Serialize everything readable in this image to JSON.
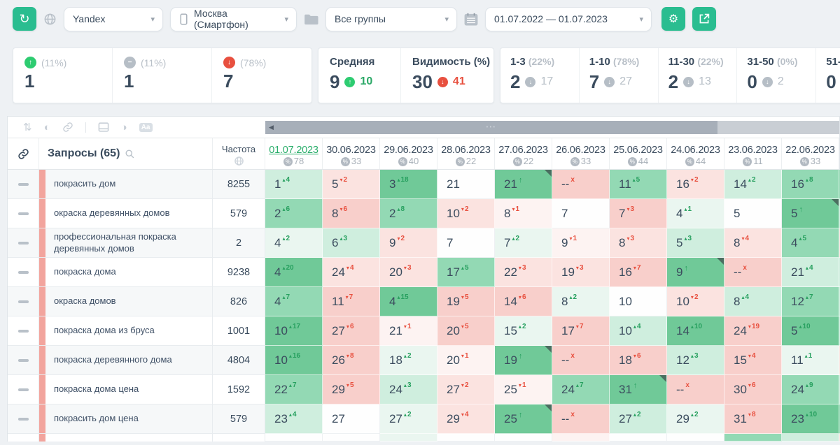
{
  "topbar": {
    "search_engine": "Yandex",
    "region": "Москва (Смартфон)",
    "group": "Все группы",
    "date_range": "01.07.2022 — 01.07.2023"
  },
  "summary": {
    "movement": [
      {
        "direction": "up",
        "pct": "(11%)",
        "value": "1"
      },
      {
        "direction": "same",
        "pct": "(11%)",
        "value": "1"
      },
      {
        "direction": "down",
        "pct": "(78%)",
        "value": "7"
      }
    ],
    "metrics": [
      {
        "label": "Средняя",
        "value": "9",
        "delta": "10",
        "trend": "up"
      },
      {
        "label": "Видимость (%)",
        "value": "30",
        "delta": "41",
        "trend": "down"
      }
    ],
    "ranges": [
      {
        "label": "1-3",
        "pct": "(22%)",
        "value": "2",
        "delta": "17"
      },
      {
        "label": "1-10",
        "pct": "(78%)",
        "value": "7",
        "delta": "27"
      },
      {
        "label": "11-30",
        "pct": "(22%)",
        "value": "2",
        "delta": "13"
      },
      {
        "label": "31-50",
        "pct": "(0%)",
        "value": "0",
        "delta": "2"
      },
      {
        "label": "51-",
        "pct": "",
        "value": "0",
        "delta": ""
      }
    ]
  },
  "table": {
    "queries_label": "Запросы",
    "queries_count": "(65)",
    "frequency_label": "Частота",
    "dates": [
      {
        "date": "01.07.2023",
        "visibility": "78",
        "current": true
      },
      {
        "date": "30.06.2023",
        "visibility": "33",
        "current": false
      },
      {
        "date": "29.06.2023",
        "visibility": "40",
        "current": false
      },
      {
        "date": "28.06.2023",
        "visibility": "22",
        "current": false
      },
      {
        "date": "27.06.2023",
        "visibility": "22",
        "current": false
      },
      {
        "date": "26.06.2023",
        "visibility": "33",
        "current": false
      },
      {
        "date": "25.06.2023",
        "visibility": "44",
        "current": false
      },
      {
        "date": "24.06.2023",
        "visibility": "44",
        "current": false
      },
      {
        "date": "23.06.2023",
        "visibility": "11",
        "current": false
      },
      {
        "date": "22.06.2023",
        "visibility": "33",
        "current": false
      }
    ],
    "rows": [
      {
        "keyword": "покрасить дом",
        "frequency": "8255",
        "edge": "g3",
        "cells": [
          {
            "v": "1",
            "d": "4",
            "t": "up",
            "s": "g2"
          },
          {
            "v": "5",
            "d": "2",
            "t": "down",
            "s": "p2"
          },
          {
            "v": "3",
            "d": "18",
            "t": "up",
            "s": "g4"
          },
          {
            "v": "21",
            "t": "none",
            "s": "w"
          },
          {
            "v": "21",
            "t": "flag",
            "s": "g4"
          },
          {
            "v": "--",
            "t": "lost",
            "s": "p3"
          },
          {
            "v": "11",
            "d": "5",
            "t": "up",
            "s": "g3"
          },
          {
            "v": "16",
            "d": "2",
            "t": "down",
            "s": "p2"
          },
          {
            "v": "14",
            "d": "2",
            "t": "up",
            "s": "g2"
          },
          {
            "v": "16",
            "d": "8",
            "t": "up",
            "s": "g3"
          }
        ]
      },
      {
        "keyword": "окраска деревянных домов",
        "frequency": "579",
        "edge": "g2",
        "cells": [
          {
            "v": "2",
            "d": "6",
            "t": "up",
            "s": "g3"
          },
          {
            "v": "8",
            "d": "6",
            "t": "down",
            "s": "p3"
          },
          {
            "v": "2",
            "d": "8",
            "t": "up",
            "s": "g3"
          },
          {
            "v": "10",
            "d": "2",
            "t": "down",
            "s": "p2"
          },
          {
            "v": "8",
            "d": "1",
            "t": "down",
            "s": "p1"
          },
          {
            "v": "7",
            "t": "none",
            "s": "w"
          },
          {
            "v": "7",
            "d": "3",
            "t": "down",
            "s": "p3"
          },
          {
            "v": "4",
            "d": "1",
            "t": "up",
            "s": "g1"
          },
          {
            "v": "5",
            "t": "none",
            "s": "w"
          },
          {
            "v": "5",
            "t": "flag",
            "s": "g4"
          }
        ]
      },
      {
        "keyword": "профессиональная покраска деревянных домов",
        "frequency": "2",
        "edge": "p2",
        "cells": [
          {
            "v": "4",
            "d": "2",
            "t": "up",
            "s": "g1"
          },
          {
            "v": "6",
            "d": "3",
            "t": "up",
            "s": "g2"
          },
          {
            "v": "9",
            "d": "2",
            "t": "down",
            "s": "p2"
          },
          {
            "v": "7",
            "t": "none",
            "s": "w"
          },
          {
            "v": "7",
            "d": "2",
            "t": "up",
            "s": "g1"
          },
          {
            "v": "9",
            "d": "1",
            "t": "down",
            "s": "p1"
          },
          {
            "v": "8",
            "d": "3",
            "t": "down",
            "s": "p2"
          },
          {
            "v": "5",
            "d": "3",
            "t": "up",
            "s": "g2"
          },
          {
            "v": "8",
            "d": "4",
            "t": "down",
            "s": "p2"
          },
          {
            "v": "4",
            "d": "5",
            "t": "up",
            "s": "g3"
          }
        ]
      },
      {
        "keyword": "покраска дома",
        "frequency": "9238",
        "edge": "g2",
        "cells": [
          {
            "v": "4",
            "d": "20",
            "t": "up",
            "s": "g4"
          },
          {
            "v": "24",
            "d": "4",
            "t": "down",
            "s": "p2"
          },
          {
            "v": "20",
            "d": "3",
            "t": "down",
            "s": "p2"
          },
          {
            "v": "17",
            "d": "5",
            "t": "up",
            "s": "g3"
          },
          {
            "v": "22",
            "d": "3",
            "t": "down",
            "s": "p2"
          },
          {
            "v": "19",
            "d": "3",
            "t": "down",
            "s": "p2"
          },
          {
            "v": "16",
            "d": "7",
            "t": "down",
            "s": "p3"
          },
          {
            "v": "9",
            "t": "flag",
            "s": "g4"
          },
          {
            "v": "--",
            "t": "lost",
            "s": "p3"
          },
          {
            "v": "21",
            "d": "4",
            "t": "up",
            "s": "g2"
          }
        ]
      },
      {
        "keyword": "окраска домов",
        "frequency": "826",
        "edge": "g2",
        "cells": [
          {
            "v": "4",
            "d": "7",
            "t": "up",
            "s": "g3"
          },
          {
            "v": "11",
            "d": "7",
            "t": "down",
            "s": "p3"
          },
          {
            "v": "4",
            "d": "15",
            "t": "up",
            "s": "g4"
          },
          {
            "v": "19",
            "d": "5",
            "t": "down",
            "s": "p3"
          },
          {
            "v": "14",
            "d": "6",
            "t": "down",
            "s": "p3"
          },
          {
            "v": "8",
            "d": "2",
            "t": "up",
            "s": "g1"
          },
          {
            "v": "10",
            "t": "none",
            "s": "w"
          },
          {
            "v": "10",
            "d": "2",
            "t": "down",
            "s": "p2"
          },
          {
            "v": "8",
            "d": "4",
            "t": "up",
            "s": "g2"
          },
          {
            "v": "12",
            "d": "7",
            "t": "up",
            "s": "g3"
          }
        ]
      },
      {
        "keyword": "покраска дома из бруса",
        "frequency": "1001",
        "edge": "g2",
        "cells": [
          {
            "v": "10",
            "d": "17",
            "t": "up",
            "s": "g4"
          },
          {
            "v": "27",
            "d": "6",
            "t": "down",
            "s": "p3"
          },
          {
            "v": "21",
            "d": "1",
            "t": "down",
            "s": "p1"
          },
          {
            "v": "20",
            "d": "5",
            "t": "down",
            "s": "p3"
          },
          {
            "v": "15",
            "d": "2",
            "t": "up",
            "s": "g1"
          },
          {
            "v": "17",
            "d": "7",
            "t": "down",
            "s": "p3"
          },
          {
            "v": "10",
            "d": "4",
            "t": "up",
            "s": "g2"
          },
          {
            "v": "14",
            "d": "10",
            "t": "up",
            "s": "g4"
          },
          {
            "v": "24",
            "d": "19",
            "t": "down",
            "s": "p3"
          },
          {
            "v": "5",
            "d": "10",
            "t": "up",
            "s": "g4"
          }
        ]
      },
      {
        "keyword": "покраска деревянного дома",
        "frequency": "4804",
        "edge": "p2",
        "cells": [
          {
            "v": "10",
            "d": "16",
            "t": "up",
            "s": "g4"
          },
          {
            "v": "26",
            "d": "8",
            "t": "down",
            "s": "p3"
          },
          {
            "v": "18",
            "d": "2",
            "t": "up",
            "s": "g1"
          },
          {
            "v": "20",
            "d": "1",
            "t": "down",
            "s": "p1"
          },
          {
            "v": "19",
            "t": "flag",
            "s": "g4"
          },
          {
            "v": "--",
            "t": "lost",
            "s": "p3"
          },
          {
            "v": "18",
            "d": "6",
            "t": "down",
            "s": "p3"
          },
          {
            "v": "12",
            "d": "3",
            "t": "up",
            "s": "g2"
          },
          {
            "v": "15",
            "d": "4",
            "t": "down",
            "s": "p3"
          },
          {
            "v": "11",
            "d": "1",
            "t": "up",
            "s": "g1"
          }
        ]
      },
      {
        "keyword": "покраска дома цена",
        "frequency": "1592",
        "edge": "g2",
        "cells": [
          {
            "v": "22",
            "d": "7",
            "t": "up",
            "s": "g3"
          },
          {
            "v": "29",
            "d": "5",
            "t": "down",
            "s": "p3"
          },
          {
            "v": "24",
            "d": "3",
            "t": "up",
            "s": "g2"
          },
          {
            "v": "27",
            "d": "2",
            "t": "down",
            "s": "p2"
          },
          {
            "v": "25",
            "d": "1",
            "t": "down",
            "s": "p1"
          },
          {
            "v": "24",
            "d": "7",
            "t": "up",
            "s": "g3"
          },
          {
            "v": "31",
            "t": "flag",
            "s": "g4"
          },
          {
            "v": "--",
            "t": "lost",
            "s": "p3"
          },
          {
            "v": "30",
            "d": "6",
            "t": "down",
            "s": "p3"
          },
          {
            "v": "24",
            "d": "9",
            "t": "up",
            "s": "g3"
          }
        ]
      },
      {
        "keyword": "покрасить дом цена",
        "frequency": "579",
        "edge": "g3",
        "cells": [
          {
            "v": "23",
            "d": "4",
            "t": "up",
            "s": "g2"
          },
          {
            "v": "27",
            "t": "none",
            "s": "w"
          },
          {
            "v": "27",
            "d": "2",
            "t": "up",
            "s": "g1"
          },
          {
            "v": "29",
            "d": "4",
            "t": "down",
            "s": "p2"
          },
          {
            "v": "25",
            "t": "flag",
            "s": "g4"
          },
          {
            "v": "--",
            "t": "lost",
            "s": "p3"
          },
          {
            "v": "27",
            "d": "2",
            "t": "up",
            "s": "g2"
          },
          {
            "v": "29",
            "d": "2",
            "t": "up",
            "s": "g1"
          },
          {
            "v": "31",
            "d": "8",
            "t": "down",
            "s": "p3"
          },
          {
            "v": "23",
            "d": "10",
            "t": "up",
            "s": "g4"
          }
        ]
      }
    ],
    "partial_row": {
      "cells": [
        "w",
        "w",
        "g1",
        "w",
        "w",
        "p1",
        "w",
        "w",
        "g3",
        "g2"
      ],
      "edge": "p2"
    }
  },
  "colors": {
    "accent_teal": "#2abd90",
    "up_green": "#27a05f",
    "down_red": "#e8503f",
    "current_date_green": "#2aae6b"
  }
}
